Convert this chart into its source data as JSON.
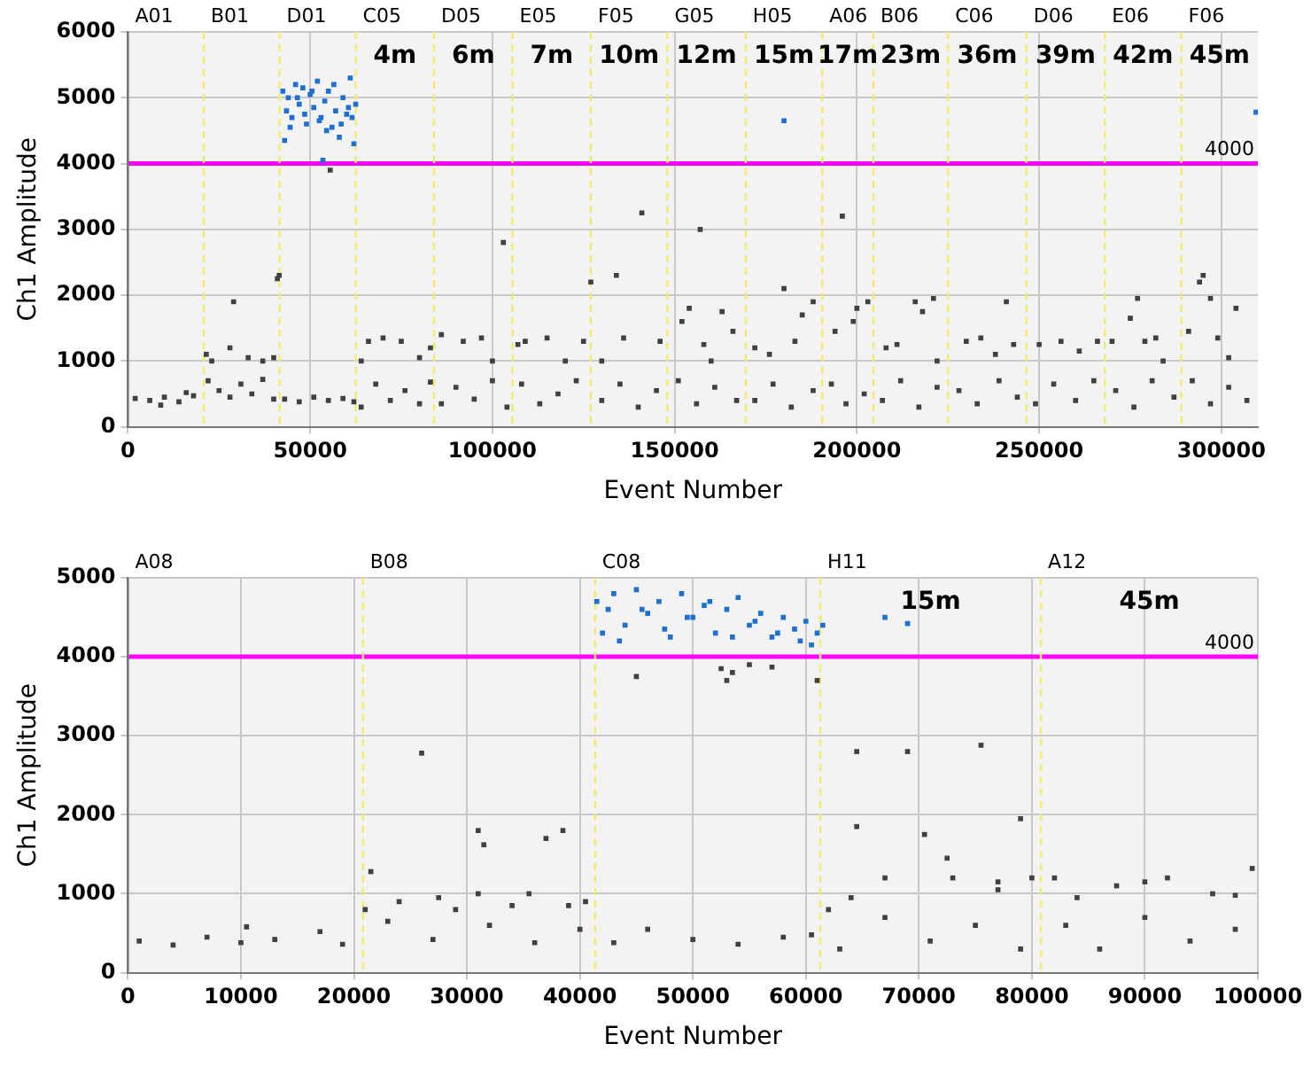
{
  "chart_data": [
    {
      "type": "scatter",
      "xlabel": "Event Number",
      "ylabel": "Ch1 Amplitude",
      "marker": "square",
      "grid": true,
      "legend": false,
      "xlim": [
        0,
        310000
      ],
      "xticks": [
        0,
        50000,
        100000,
        150000,
        200000,
        250000,
        300000
      ],
      "ylim": [
        0,
        6000
      ],
      "yticks": [
        0,
        1000,
        2000,
        3000,
        4000,
        5000,
        6000
      ],
      "series": [
        {
          "color": "#404040",
          "x": [
            2000,
            6000,
            10000,
            14000,
            18000,
            9000,
            16000,
            21500,
            23000,
            28000,
            29000,
            33000,
            37000,
            40000,
            41000,
            41500,
            22000,
            25000,
            28000,
            31000,
            34000,
            37000,
            40000,
            43000,
            47000,
            51000,
            55000,
            59000,
            62000,
            55500,
            64000,
            66000,
            70000,
            75000,
            80000,
            83000,
            64000,
            68000,
            72000,
            76000,
            80000,
            83000,
            86000,
            92000,
            97000,
            103000,
            100000,
            86000,
            90000,
            95000,
            100000,
            104000,
            107000,
            109000,
            115000,
            125000,
            127000,
            120000,
            108000,
            113000,
            118000,
            123000,
            134000,
            136000,
            141000,
            146000,
            130000,
            130000,
            135000,
            140000,
            145000,
            152000,
            154000,
            157000,
            158000,
            163000,
            166000,
            160000,
            151000,
            156000,
            161000,
            167000,
            172000,
            176000,
            180000,
            183000,
            185000,
            188000,
            172000,
            177000,
            182000,
            188000,
            194000,
            196000,
            199000,
            200000,
            203000,
            193000,
            197000,
            202000,
            208000,
            211000,
            216000,
            218000,
            221000,
            222000,
            207000,
            212000,
            217000,
            222000,
            230000,
            234000,
            238000,
            241000,
            243000,
            228000,
            233000,
            239000,
            244000,
            250000,
            256000,
            261000,
            266000,
            249000,
            254000,
            260000,
            265000,
            270000,
            275000,
            277000,
            279000,
            282000,
            284000,
            271000,
            276000,
            281000,
            287000,
            291000,
            294000,
            295000,
            297000,
            299000,
            304000,
            302000,
            292000,
            297000,
            302000,
            307000
          ],
          "values": [
            430,
            400,
            450,
            380,
            470,
            330,
            520,
            1100,
            1000,
            1200,
            1900,
            1050,
            1000,
            1050,
            2250,
            2300,
            700,
            550,
            450,
            650,
            500,
            720,
            420,
            420,
            380,
            450,
            400,
            430,
            380,
            3900,
            1000,
            1300,
            1350,
            1300,
            1050,
            1200,
            300,
            650,
            400,
            550,
            350,
            680,
            1400,
            1300,
            1350,
            2800,
            1000,
            350,
            600,
            420,
            700,
            300,
            1250,
            1300,
            1350,
            1300,
            2200,
            1000,
            650,
            350,
            500,
            700,
            2300,
            1350,
            3250,
            1300,
            1000,
            400,
            650,
            300,
            550,
            1600,
            1800,
            3000,
            1250,
            1750,
            1450,
            1000,
            700,
            350,
            600,
            400,
            1200,
            1100,
            2100,
            1300,
            1700,
            1900,
            400,
            650,
            300,
            550,
            1450,
            3200,
            1600,
            1800,
            1900,
            650,
            350,
            500,
            1200,
            1250,
            1900,
            1750,
            1950,
            1000,
            400,
            700,
            300,
            600,
            1300,
            1350,
            1100,
            1900,
            1250,
            550,
            350,
            700,
            450,
            1250,
            1300,
            1150,
            1300,
            350,
            650,
            400,
            700,
            1300,
            1650,
            1950,
            1300,
            1350,
            1000,
            550,
            300,
            700,
            450,
            1450,
            2200,
            2300,
            1950,
            1350,
            1800,
            1050,
            700,
            350,
            600,
            400
          ]
        },
        {
          "color": "#1f6fd0",
          "x": [
            42500,
            43000,
            43500,
            44000,
            45000,
            46000,
            47000,
            48000,
            49000,
            50000,
            51000,
            52000,
            53000,
            54000,
            55000,
            56000,
            57000,
            58000,
            59000,
            60000,
            61000,
            62000,
            62500,
            44500,
            46500,
            48500,
            50500,
            52500,
            54500,
            56500,
            58500,
            60500,
            61500,
            53500,
            180000,
            309500
          ],
          "values": [
            5100,
            4350,
            4800,
            5000,
            4700,
            5200,
            4900,
            5150,
            4600,
            5050,
            4850,
            5250,
            4700,
            4950,
            5100,
            4550,
            4800,
            4400,
            5000,
            4750,
            5300,
            4300,
            4900,
            4550,
            5000,
            4750,
            5100,
            4650,
            4500,
            5200,
            4600,
            4850,
            4700,
            4050,
            4650,
            4780
          ]
        }
      ],
      "ref_lines": [
        {
          "axis": "y",
          "value": 4000,
          "label": "4000",
          "color": "#ff00ff",
          "line_style": "solid"
        },
        {
          "axis": "x",
          "value": 0,
          "label": "A01",
          "color": "#777777",
          "line_style": "solid"
        },
        {
          "axis": "x",
          "value": 20800,
          "label": "B01",
          "color": "#f2ec6e",
          "line_style": "dashed"
        },
        {
          "axis": "x",
          "value": 41600,
          "label": "D01",
          "color": "#f2ec6e",
          "line_style": "dashed"
        },
        {
          "axis": "x",
          "value": 62500,
          "label": "C05",
          "color": "#f2ec6e",
          "line_style": "dashed"
        },
        {
          "axis": "x",
          "value": 84000,
          "label": "D05",
          "color": "#f2ec6e",
          "line_style": "dashed"
        },
        {
          "axis": "x",
          "value": 105500,
          "label": "E05",
          "color": "#f2ec6e",
          "line_style": "dashed"
        },
        {
          "axis": "x",
          "value": 127000,
          "label": "F05",
          "color": "#f2ec6e",
          "line_style": "dashed"
        },
        {
          "axis": "x",
          "value": 148000,
          "label": "G05",
          "color": "#f2ec6e",
          "line_style": "dashed"
        },
        {
          "axis": "x",
          "value": 169500,
          "label": "H05",
          "color": "#f2ec6e",
          "line_style": "dashed"
        },
        {
          "axis": "x",
          "value": 190500,
          "label": "A06",
          "color": "#f2ec6e",
          "line_style": "dashed"
        },
        {
          "axis": "x",
          "value": 204500,
          "label": "B06",
          "color": "#f2ec6e",
          "line_style": "dashed"
        },
        {
          "axis": "x",
          "value": 225000,
          "label": "C06",
          "color": "#f2ec6e",
          "line_style": "dashed"
        },
        {
          "axis": "x",
          "value": 246500,
          "label": "D06",
          "color": "#f2ec6e",
          "line_style": "dashed"
        },
        {
          "axis": "x",
          "value": 268000,
          "label": "E06",
          "color": "#f2ec6e",
          "line_style": "dashed"
        },
        {
          "axis": "x",
          "value": 289000,
          "label": "F06",
          "color": "#f2ec6e",
          "line_style": "dashed"
        }
      ],
      "annotations": [
        "4m",
        "6m",
        "7m",
        "10m",
        "12m",
        "15m",
        "17m",
        "23m",
        "36m",
        "39m",
        "42m",
        "45m"
      ]
    },
    {
      "type": "scatter",
      "xlabel": "Event Number",
      "ylabel": "Ch1 Amplitude",
      "marker": "square",
      "grid": true,
      "legend": false,
      "xlim": [
        0,
        100000
      ],
      "xticks": [
        0,
        10000,
        20000,
        30000,
        40000,
        50000,
        60000,
        70000,
        80000,
        90000,
        100000
      ],
      "ylim": [
        0,
        5000
      ],
      "yticks": [
        0,
        1000,
        2000,
        3000,
        4000,
        5000
      ],
      "series": [
        {
          "color": "#404040",
          "x": [
            1000,
            4000,
            7000,
            10000,
            10500,
            13000,
            17000,
            19000,
            21500,
            21000,
            24000,
            26000,
            27500,
            29000,
            31000,
            31500,
            31000,
            34000,
            35500,
            37000,
            38500,
            39000,
            40500,
            23000,
            27000,
            32000,
            36000,
            40000,
            43000,
            46000,
            50000,
            54000,
            58000,
            60500,
            45000,
            52500,
            53000,
            53500,
            55000,
            57000,
            61000,
            62000,
            64500,
            64500,
            67000,
            69000,
            70500,
            72500,
            73000,
            75500,
            77000,
            77000,
            79000,
            80000,
            64000,
            63000,
            67000,
            71000,
            75000,
            79000,
            82000,
            84000,
            87500,
            90000,
            92000,
            96000,
            98000,
            99500,
            83000,
            86000,
            90000,
            94000,
            98000
          ],
          "values": [
            400,
            350,
            450,
            380,
            580,
            420,
            520,
            360,
            1280,
            800,
            900,
            2780,
            950,
            800,
            1800,
            1620,
            1000,
            850,
            1000,
            1700,
            1800,
            850,
            900,
            650,
            420,
            600,
            380,
            550,
            380,
            550,
            420,
            360,
            450,
            480,
            3750,
            3850,
            3700,
            3800,
            3900,
            3870,
            3700,
            800,
            2800,
            1850,
            1200,
            2800,
            1750,
            1450,
            1200,
            2880,
            1150,
            1050,
            1950,
            1200,
            950,
            300,
            700,
            400,
            600,
            300,
            1200,
            950,
            1100,
            1150,
            1200,
            1000,
            980,
            1320,
            600,
            300,
            700,
            400,
            550
          ]
        },
        {
          "color": "#1f6fd0",
          "x": [
            41500,
            42000,
            42500,
            43000,
            44000,
            45000,
            46000,
            47000,
            48000,
            49000,
            50000,
            51000,
            52000,
            53000,
            54000,
            55000,
            56000,
            57000,
            58000,
            59000,
            60000,
            60500,
            61000,
            61500,
            43500,
            45500,
            47500,
            49500,
            51500,
            53500,
            55500,
            57500,
            59500,
            67000,
            69000
          ],
          "values": [
            4700,
            4300,
            4600,
            4800,
            4400,
            4850,
            4550,
            4700,
            4250,
            4800,
            4500,
            4650,
            4300,
            4600,
            4750,
            4400,
            4550,
            4250,
            4500,
            4350,
            4450,
            4150,
            4300,
            4400,
            4200,
            4600,
            4350,
            4500,
            4700,
            4250,
            4450,
            4300,
            4200,
            4500,
            4420
          ]
        }
      ],
      "ref_lines": [
        {
          "axis": "y",
          "value": 4000,
          "label": "4000",
          "color": "#ff00ff",
          "line_style": "solid"
        },
        {
          "axis": "x",
          "value": 0,
          "label": "A08",
          "color": "#777777",
          "line_style": "solid"
        },
        {
          "axis": "x",
          "value": 20800,
          "label": "B08",
          "color": "#f2ec6e",
          "line_style": "dashed"
        },
        {
          "axis": "x",
          "value": 41350,
          "label": "C08",
          "color": "#f2ec6e",
          "line_style": "dashed"
        },
        {
          "axis": "x",
          "value": 61280,
          "label": "H11",
          "color": "#f2ec6e",
          "line_style": "dashed"
        },
        {
          "axis": "x",
          "value": 80800,
          "label": "A12",
          "color": "#f2ec6e",
          "line_style": "dashed"
        }
      ],
      "annotations": [
        "15m",
        "45m"
      ]
    }
  ]
}
